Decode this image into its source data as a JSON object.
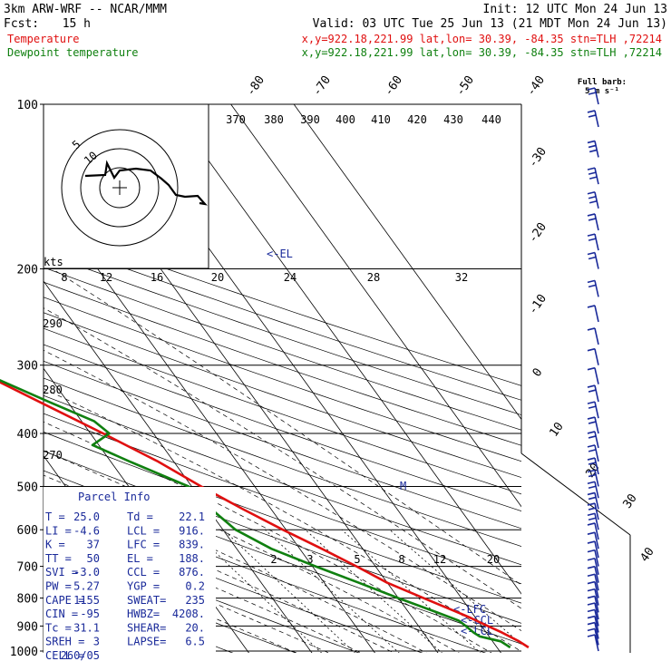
{
  "header": {
    "model": "3km ARW-WRF -- NCAR/MMM",
    "init": "Init: 12 UTC Mon 24 Jun 13",
    "fcst_label": "Fcst:",
    "fcst_value": "15 h",
    "valid": "Valid: 03 UTC Tue 25 Jun 13 (21 MDT Mon 24 Jun 13)",
    "temp_label": "Temperature",
    "temp_loc": "x,y=922.18,221.99   lat,lon= 30.39, -84.35   stn=TLH ,72214",
    "dew_label": "Dewpoint temperature",
    "dew_loc": "x,y=922.18,221.99   lat,lon= 30.39, -84.35   stn=TLH ,72214"
  },
  "colors": {
    "temperature": "#e01010",
    "dewpoint": "#108010",
    "annotation": "#1a2a9a",
    "axes": "#000000"
  },
  "barb_key": {
    "line1": "Full barb:",
    "line2": "5 m s⁻¹"
  },
  "hodograph": {
    "ring_labels": [
      "5",
      "10"
    ],
    "speed_unit": "kts",
    "speed_ticks": [
      "8",
      "12",
      "16",
      "20",
      "24",
      "28",
      "32"
    ]
  },
  "adiabat_labels": [
    "370",
    "380",
    "390",
    "400",
    "410",
    "420",
    "430",
    "440",
    "290",
    "280",
    "270"
  ],
  "mixing_ratio_labels": [
    "2",
    "3",
    "5",
    "8",
    "12",
    "20"
  ],
  "level_markers": {
    "el": "<-EL",
    "lfc": "<-LFC",
    "ccl": "<-CCL",
    "lcl": "<-LCL",
    "m": "M"
  },
  "parcel_info": {
    "title": "Parcel Info",
    "rows": [
      [
        "T  =",
        "25.0",
        "Td =",
        "22.1"
      ],
      [
        "LI =",
        "-4.6",
        "LCL =",
        "916."
      ],
      [
        "K  =",
        "37",
        "LFC =",
        "839."
      ],
      [
        "TT =",
        "50",
        "EL =",
        "188."
      ],
      [
        "SVI =",
        "-3.0",
        "CCL =",
        "876."
      ],
      [
        "PW =",
        "5.27",
        "YGP =",
        "0.2"
      ],
      [
        "CAPE =",
        "1155",
        "SWEAT=",
        "235"
      ],
      [
        "CIN =",
        "-95",
        "HWBZ=",
        "4208."
      ],
      [
        "Tc =",
        "31.1",
        "SHEAR=",
        "20."
      ],
      [
        "SREH =",
        "3",
        "LAPSE=",
        "6.5"
      ],
      [
        "CELL =",
        "260/05",
        "",
        ""
      ]
    ]
  },
  "chart_data": {
    "type": "line",
    "title": "",
    "xlabel": "",
    "ylabel": "",
    "pressure_ticks": [
      100,
      200,
      300,
      400,
      500,
      600,
      700,
      800,
      900,
      1000
    ],
    "pressure_range": [
      1050,
      100
    ],
    "temp_ticks": [
      -80,
      -70,
      -60,
      -50,
      -40,
      -30,
      -20,
      -10,
      0,
      10,
      20,
      30,
      40
    ],
    "series": [
      {
        "name": "Temperature",
        "pressure": [
          985,
          960,
          925,
          900,
          870,
          850,
          800,
          750,
          700,
          650,
          600,
          550,
          500,
          450,
          400,
          350,
          300,
          250,
          220,
          200,
          188,
          175,
          160,
          145,
          130,
          115,
          100
        ],
        "temperature": [
          25.0,
          24.2,
          22.5,
          21.0,
          19.2,
          17.8,
          14.0,
          10.0,
          7.0,
          3.5,
          -0.5,
          -4.5,
          -8.5,
          -12.5,
          -18.0,
          -24.5,
          -32.0,
          -41.0,
          -47.0,
          -52.0,
          -57.0,
          -61.5,
          -64.0,
          -66.0,
          -66.5,
          -66.5,
          -66.5
        ]
      },
      {
        "name": "Dewpoint temperature",
        "pressure": [
          985,
          960,
          940,
          925,
          900,
          880,
          850,
          800,
          750,
          700,
          650,
          600,
          550,
          500,
          450,
          420,
          400,
          380,
          350,
          300,
          280,
          250,
          220,
          200,
          188,
          175,
          160,
          145,
          130,
          115,
          100
        ],
        "temperature": [
          22.1,
          21.3,
          18.5,
          18.0,
          17.5,
          17.0,
          14.5,
          10.0,
          5.5,
          0.5,
          -4.5,
          -8.0,
          -9.5,
          -10.5,
          -17.0,
          -21.0,
          -17.0,
          -18.0,
          -23.0,
          -32.0,
          -36.0,
          -45.0,
          -53.0,
          -60.0,
          -66.0,
          -72.0,
          -77.0,
          -81.0,
          -85.0,
          -89.0,
          -95.0
        ]
      }
    ],
    "wind_barbs": {
      "pressure": [
        1000,
        975,
        950,
        925,
        900,
        875,
        850,
        825,
        800,
        775,
        750,
        725,
        700,
        675,
        650,
        625,
        600,
        575,
        550,
        525,
        500,
        475,
        450,
        425,
        400,
        375,
        350,
        325,
        300,
        275,
        250,
        225,
        200,
        185,
        170,
        155,
        140,
        125,
        110,
        100
      ],
      "speed_ms": [
        4,
        3,
        3,
        4,
        4,
        4,
        5,
        5,
        5,
        5,
        5,
        5,
        5,
        5,
        5,
        5,
        10,
        10,
        10,
        10,
        10,
        10,
        10,
        10,
        10,
        10,
        10,
        5,
        5,
        5,
        5,
        10,
        10,
        10,
        10,
        15,
        15,
        15,
        10,
        10
      ]
    }
  }
}
